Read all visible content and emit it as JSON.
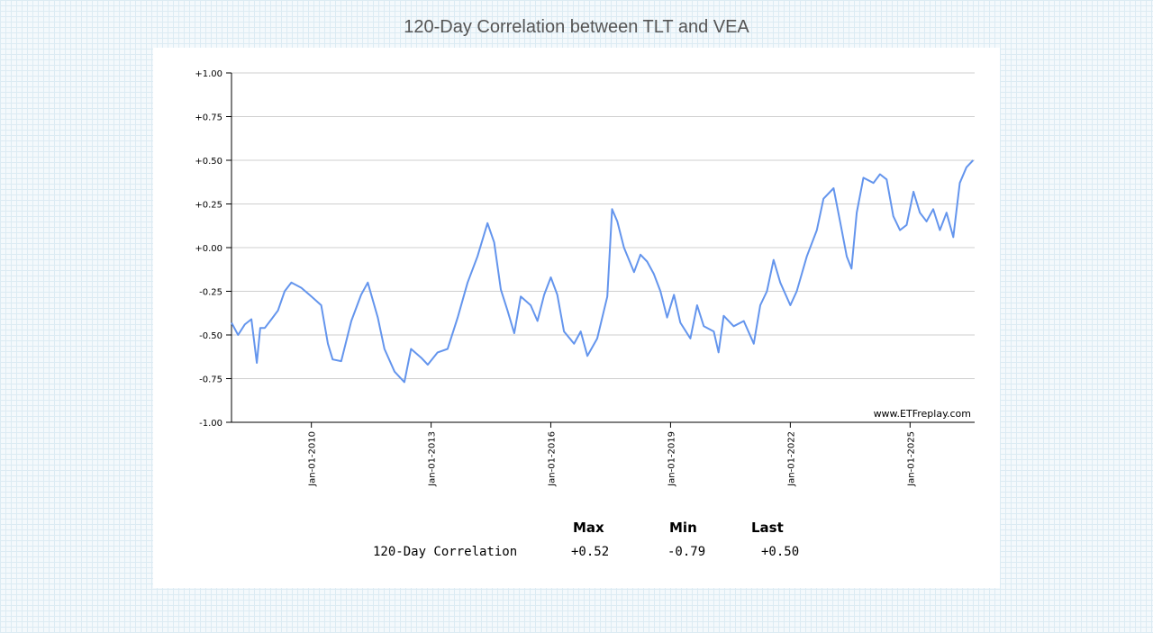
{
  "chart_data": {
    "type": "line",
    "title": "120-Day Correlation between TLT and VEA",
    "watermark": "www.ETFreplay.com",
    "ylim": [
      -1.0,
      1.0
    ],
    "y_ticks": [
      1.0,
      0.75,
      0.5,
      0.25,
      0.0,
      -0.25,
      -0.5,
      -0.75,
      -1.0
    ],
    "y_tick_labels": [
      "+1.00",
      "+0.75",
      "+0.50",
      "+0.25",
      "+0.00",
      "-0.25",
      "-0.50",
      "-0.75",
      "-1.00"
    ],
    "xlim": [
      "2008-01-01",
      "2026-08-15"
    ],
    "x_ticks": [
      "2010-01-01",
      "2013-01-01",
      "2016-01-01",
      "2019-01-01",
      "2022-01-01",
      "2025-01-01"
    ],
    "x_tick_labels": [
      "Jan-01-2010",
      "Jan-01-2013",
      "Jan-01-2016",
      "Jan-01-2019",
      "Jan-01-2022",
      "Jan-01-2025"
    ],
    "grid": true,
    "line_color": "#6495ED",
    "series": [
      {
        "points": [
          [
            "2008-01-01",
            -0.43
          ],
          [
            "2008-03-01",
            -0.5
          ],
          [
            "2008-05-01",
            -0.44
          ],
          [
            "2008-07-01",
            -0.41
          ],
          [
            "2008-08-20",
            -0.66
          ],
          [
            "2008-09-20",
            -0.46
          ],
          [
            "2008-11-01",
            -0.46
          ],
          [
            "2009-01-01",
            -0.41
          ],
          [
            "2009-03-01",
            -0.36
          ],
          [
            "2009-05-01",
            -0.25
          ],
          [
            "2009-07-01",
            -0.2
          ],
          [
            "2009-10-01",
            -0.23
          ],
          [
            "2010-01-01",
            -0.28
          ],
          [
            "2010-04-01",
            -0.33
          ],
          [
            "2010-06-01",
            -0.55
          ],
          [
            "2010-07-15",
            -0.64
          ],
          [
            "2010-10-01",
            -0.65
          ],
          [
            "2011-01-01",
            -0.42
          ],
          [
            "2011-04-01",
            -0.27
          ],
          [
            "2011-06-01",
            -0.2
          ],
          [
            "2011-09-01",
            -0.4
          ],
          [
            "2011-11-01",
            -0.58
          ],
          [
            "2012-02-01",
            -0.71
          ],
          [
            "2012-05-01",
            -0.77
          ],
          [
            "2012-07-01",
            -0.58
          ],
          [
            "2012-10-01",
            -0.63
          ],
          [
            "2012-12-01",
            -0.67
          ],
          [
            "2013-03-01",
            -0.6
          ],
          [
            "2013-06-01",
            -0.58
          ],
          [
            "2013-09-01",
            -0.4
          ],
          [
            "2013-12-01",
            -0.2
          ],
          [
            "2014-03-01",
            -0.05
          ],
          [
            "2014-06-01",
            0.14
          ],
          [
            "2014-08-01",
            0.03
          ],
          [
            "2014-10-01",
            -0.24
          ],
          [
            "2014-12-01",
            -0.36
          ],
          [
            "2015-02-01",
            -0.49
          ],
          [
            "2015-04-01",
            -0.28
          ],
          [
            "2015-07-01",
            -0.33
          ],
          [
            "2015-09-01",
            -0.42
          ],
          [
            "2015-11-01",
            -0.27
          ],
          [
            "2016-01-01",
            -0.17
          ],
          [
            "2016-03-01",
            -0.27
          ],
          [
            "2016-05-01",
            -0.48
          ],
          [
            "2016-08-01",
            -0.55
          ],
          [
            "2016-10-01",
            -0.48
          ],
          [
            "2016-12-01",
            -0.62
          ],
          [
            "2017-03-01",
            -0.52
          ],
          [
            "2017-06-01",
            -0.28
          ],
          [
            "2017-07-15",
            0.22
          ],
          [
            "2017-09-01",
            0.15
          ],
          [
            "2017-11-01",
            0.0
          ],
          [
            "2018-02-01",
            -0.14
          ],
          [
            "2018-04-01",
            -0.04
          ],
          [
            "2018-06-01",
            -0.08
          ],
          [
            "2018-08-01",
            -0.15
          ],
          [
            "2018-10-01",
            -0.25
          ],
          [
            "2018-12-01",
            -0.4
          ],
          [
            "2019-02-01",
            -0.27
          ],
          [
            "2019-04-01",
            -0.43
          ],
          [
            "2019-07-01",
            -0.52
          ],
          [
            "2019-09-01",
            -0.33
          ],
          [
            "2019-11-01",
            -0.45
          ],
          [
            "2020-02-01",
            -0.48
          ],
          [
            "2020-03-15",
            -0.6
          ],
          [
            "2020-05-01",
            -0.39
          ],
          [
            "2020-08-01",
            -0.45
          ],
          [
            "2020-11-01",
            -0.42
          ],
          [
            "2021-02-01",
            -0.55
          ],
          [
            "2021-04-01",
            -0.33
          ],
          [
            "2021-06-01",
            -0.25
          ],
          [
            "2021-08-01",
            -0.07
          ],
          [
            "2021-10-01",
            -0.2
          ],
          [
            "2022-01-01",
            -0.33
          ],
          [
            "2022-03-01",
            -0.25
          ],
          [
            "2022-06-01",
            -0.05
          ],
          [
            "2022-09-01",
            0.1
          ],
          [
            "2022-11-01",
            0.28
          ],
          [
            "2023-02-01",
            0.34
          ],
          [
            "2023-04-01",
            0.15
          ],
          [
            "2023-06-01",
            -0.05
          ],
          [
            "2023-07-15",
            -0.12
          ],
          [
            "2023-09-01",
            0.2
          ],
          [
            "2023-11-01",
            0.4
          ],
          [
            "2024-02-01",
            0.37
          ],
          [
            "2024-04-01",
            0.42
          ],
          [
            "2024-06-01",
            0.39
          ],
          [
            "2024-08-01",
            0.18
          ],
          [
            "2024-10-01",
            0.1
          ],
          [
            "2024-12-01",
            0.13
          ],
          [
            "2025-02-01",
            0.32
          ],
          [
            "2025-04-01",
            0.2
          ],
          [
            "2025-06-01",
            0.15
          ],
          [
            "2025-08-01",
            0.22
          ],
          [
            "2025-10-01",
            0.1
          ],
          [
            "2025-12-01",
            0.2
          ],
          [
            "2026-02-01",
            0.06
          ],
          [
            "2026-04-01",
            0.37
          ],
          [
            "2026-06-01",
            0.46
          ],
          [
            "2026-08-01",
            0.5
          ]
        ]
      }
    ]
  },
  "stats": {
    "headers": [
      "Max",
      "Min",
      "Last"
    ],
    "row_label": "120-Day Correlation",
    "values": [
      "+0.52",
      "-0.79",
      "+0.50"
    ]
  }
}
